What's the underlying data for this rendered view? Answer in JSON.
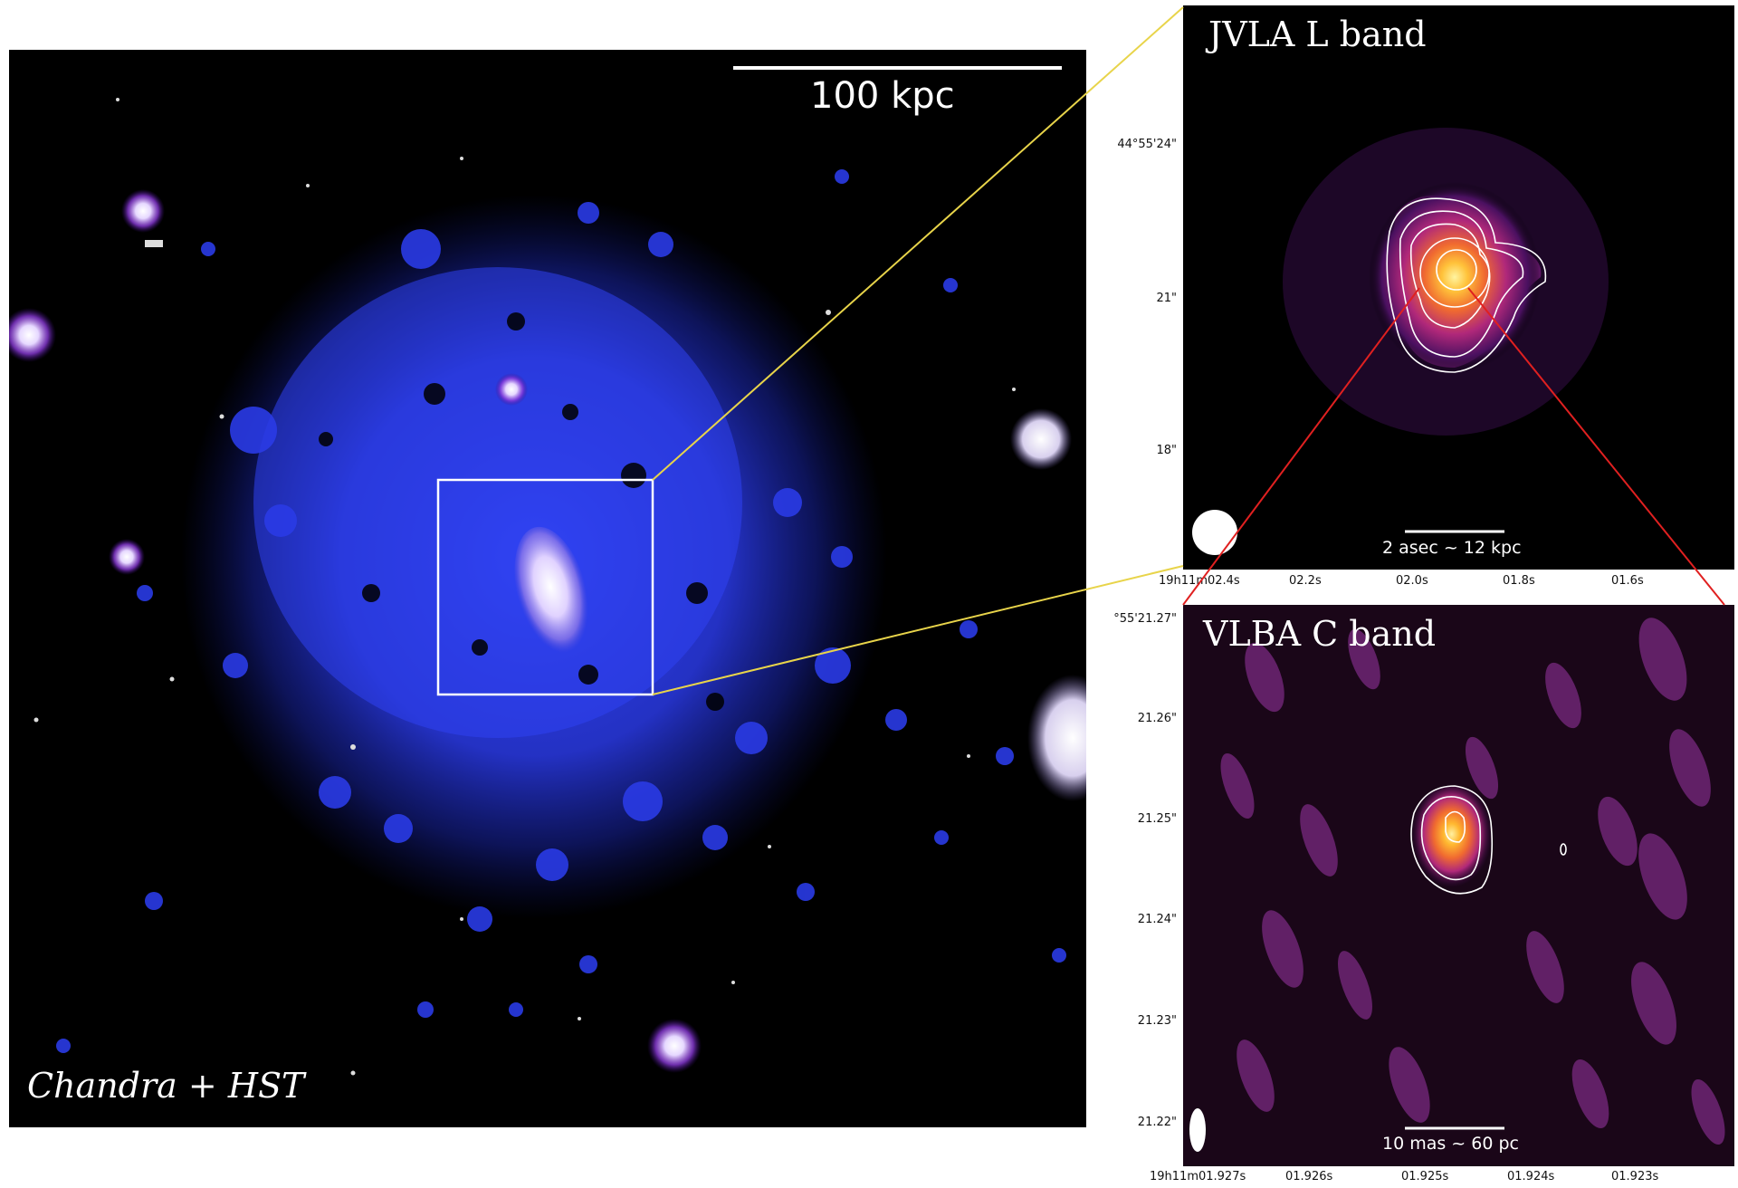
{
  "main_panel": {
    "label": "Chandra + HST",
    "scale_bar_label": "100 kpc"
  },
  "jvla_panel": {
    "title": "JVLA L band",
    "scale_bar_label": "2 asec ~ 12 kpc",
    "y_ticks": [
      "44°55'24\"",
      "21\"",
      "18\""
    ],
    "x_ticks": [
      "19h11m02.4s",
      "02.2s",
      "02.0s",
      "01.8s",
      "01.6s"
    ]
  },
  "vlba_panel": {
    "title": "VLBA C band",
    "scale_bar_label": "10 mas ~ 60 pc",
    "y_ticks": [
      "°55'21.27\"",
      "21.26\"",
      "21.25\"",
      "21.24\"",
      "21.23\"",
      "21.22\""
    ],
    "x_ticks": [
      "19h11m01.927s",
      "01.926s",
      "01.925s",
      "01.924s",
      "01.923s"
    ]
  },
  "colors": {
    "xray_emission": "#2a3cf0",
    "zoom_box": "#ffffff",
    "jvla_connector": "#e8d44a",
    "vlba_connector": "#e02020",
    "contour": "#ffffff"
  }
}
